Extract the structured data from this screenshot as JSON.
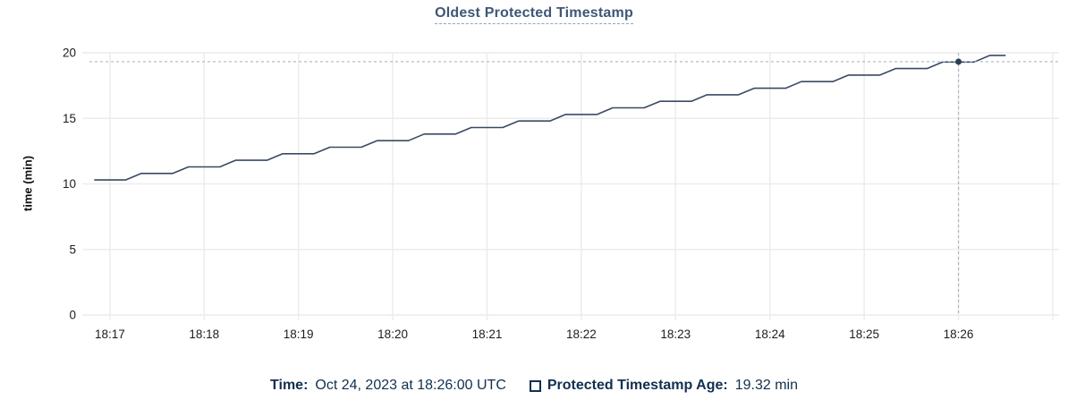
{
  "chart_data": {
    "type": "line",
    "title": "Oldest Protected Timestamp",
    "xlabel": "",
    "ylabel": "time (min)",
    "ylim": [
      0,
      20
    ],
    "y_ticks": [
      0,
      5,
      10,
      15,
      20
    ],
    "grid": true,
    "x_domain": [
      "18:16:47",
      "18:27:04"
    ],
    "x_ticks": [
      {
        "label": "18:17",
        "time": "18:17:00"
      },
      {
        "label": "18:18",
        "time": "18:18:00"
      },
      {
        "label": "18:19",
        "time": "18:19:00"
      },
      {
        "label": "18:20",
        "time": "18:20:00"
      },
      {
        "label": "18:21",
        "time": "18:21:00"
      },
      {
        "label": "18:22",
        "time": "18:22:00"
      },
      {
        "label": "18:23",
        "time": "18:23:00"
      },
      {
        "label": "18:24",
        "time": "18:24:00"
      },
      {
        "label": "18:25",
        "time": "18:25:00"
      },
      {
        "label": "18:26",
        "time": "18:26:00"
      },
      {
        "label": "",
        "time": "18:27:00"
      }
    ],
    "series": [
      {
        "name": "Protected Timestamp Age",
        "color": "#394a63",
        "points": [
          [
            "18:16:50",
            10.3
          ],
          [
            "18:17:10",
            10.3
          ],
          [
            "18:17:20",
            10.8
          ],
          [
            "18:17:40",
            10.8
          ],
          [
            "18:17:50",
            11.3
          ],
          [
            "18:18:10",
            11.3
          ],
          [
            "18:18:20",
            11.8
          ],
          [
            "18:18:40",
            11.8
          ],
          [
            "18:18:50",
            12.3
          ],
          [
            "18:19:10",
            12.3
          ],
          [
            "18:19:20",
            12.8
          ],
          [
            "18:19:40",
            12.8
          ],
          [
            "18:19:50",
            13.3
          ],
          [
            "18:20:10",
            13.3
          ],
          [
            "18:20:20",
            13.8
          ],
          [
            "18:20:40",
            13.8
          ],
          [
            "18:20:50",
            14.3
          ],
          [
            "18:21:10",
            14.3
          ],
          [
            "18:21:20",
            14.8
          ],
          [
            "18:21:40",
            14.8
          ],
          [
            "18:21:50",
            15.3
          ],
          [
            "18:22:10",
            15.3
          ],
          [
            "18:22:20",
            15.8
          ],
          [
            "18:22:40",
            15.8
          ],
          [
            "18:22:50",
            16.3
          ],
          [
            "18:23:10",
            16.3
          ],
          [
            "18:23:20",
            16.8
          ],
          [
            "18:23:40",
            16.8
          ],
          [
            "18:23:50",
            17.3
          ],
          [
            "18:24:10",
            17.3
          ],
          [
            "18:24:20",
            17.8
          ],
          [
            "18:24:40",
            17.8
          ],
          [
            "18:24:50",
            18.3
          ],
          [
            "18:25:10",
            18.3
          ],
          [
            "18:25:20",
            18.8
          ],
          [
            "18:25:40",
            18.8
          ],
          [
            "18:25:50",
            19.3
          ],
          [
            "18:26:10",
            19.3
          ],
          [
            "18:26:20",
            19.8
          ],
          [
            "18:26:30",
            19.8
          ]
        ]
      }
    ],
    "crosshair": {
      "time": "18:26:00",
      "value": 19.32
    },
    "legend_position": "bottom"
  },
  "footer": {
    "time_label": "Time:",
    "time_value": "Oct 24, 2023 at 18:26:00 UTC",
    "age_label": "Protected Timestamp Age:",
    "age_value": "19.32 min"
  },
  "colors": {
    "series_line": "#394a63",
    "marker": "#2b3c55",
    "crosshair": "#a6b7c6",
    "gridline": "#ececec",
    "axis_text": "#1c1c1c",
    "title_text": "#3f5677",
    "footer_text": "#11304f"
  }
}
